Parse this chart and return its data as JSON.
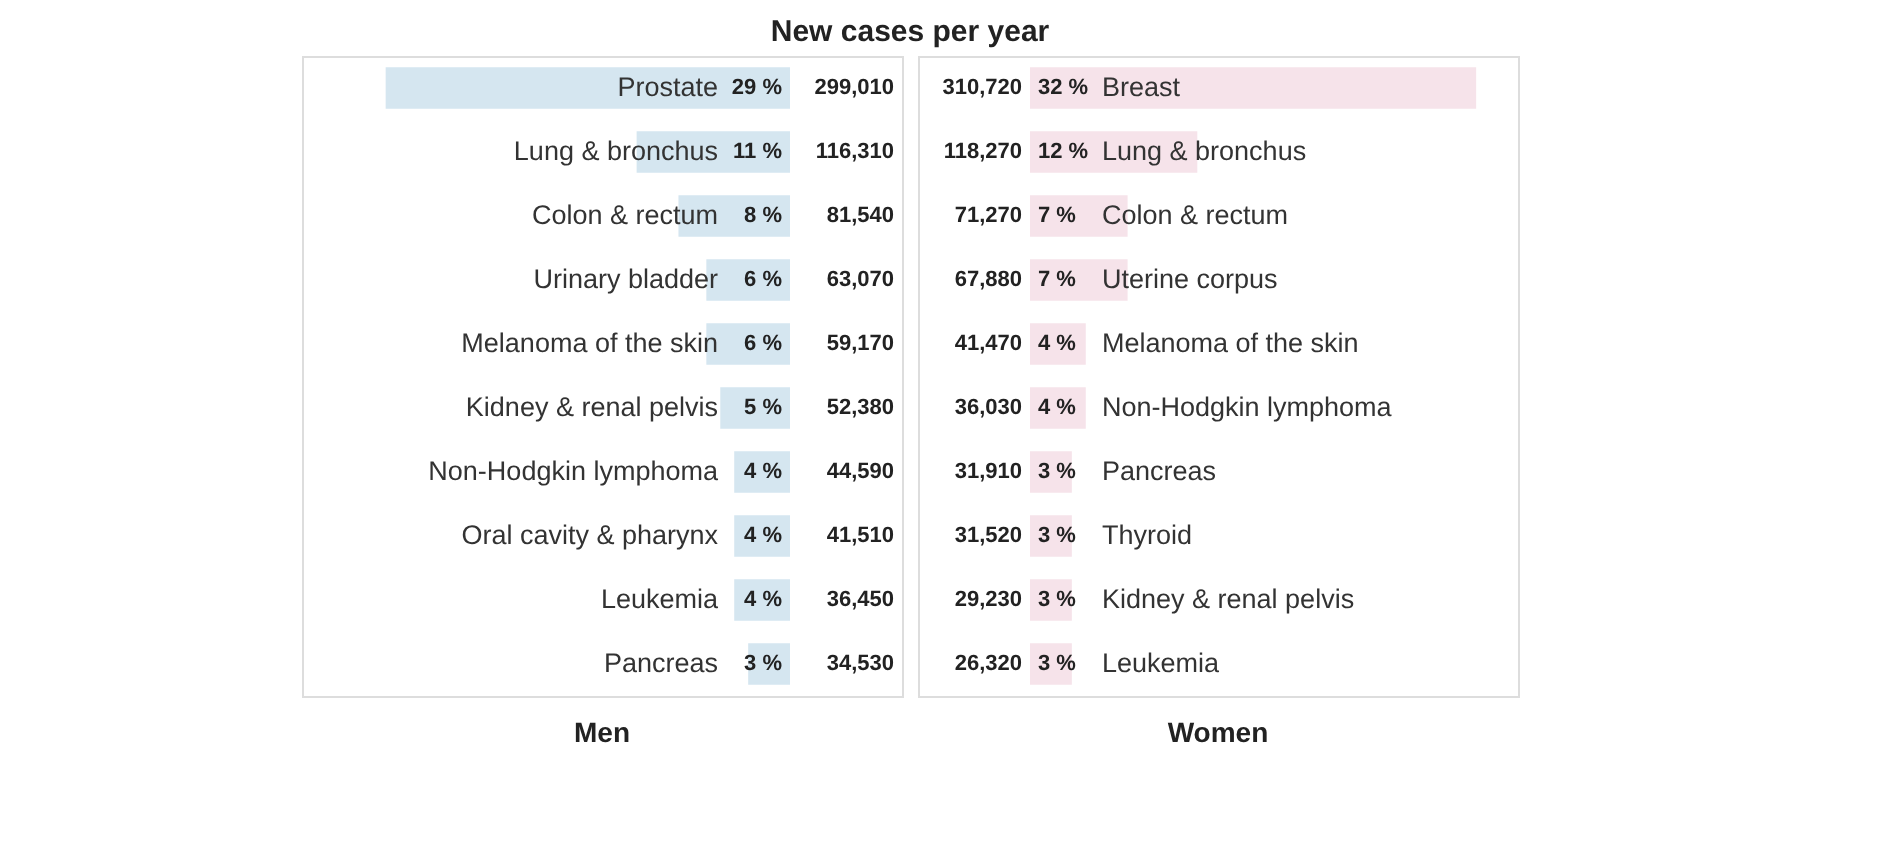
{
  "chart_data": [
    {
      "type": "bar",
      "orientation": "horizontal",
      "title": "New cases per year",
      "xlabel": "Men",
      "xlim": [
        35,
        0
      ],
      "tick_labels": false,
      "categories": [
        "Prostate",
        "Lung & bronchus",
        "Colon & rectum",
        "Urinary bladder",
        "Melanoma of the skin",
        "Kidney & renal pelvis",
        "Non-Hodgkin lymphoma",
        "Oral cavity & pharynx",
        "Leukemia",
        "Pancreas"
      ],
      "series": [
        {
          "color": "#d5e6f0",
          "values": [
            29,
            11,
            8,
            6,
            6,
            5,
            4,
            4,
            4,
            3
          ],
          "value_labels": [
            "29 %",
            "11 %",
            "8 %",
            "6 %",
            "6 %",
            "5 %",
            "4 %",
            "4 %",
            "4 %",
            "3 %"
          ]
        }
      ],
      "annotations": [
        "299,010",
        "116,310",
        "81,540",
        "63,070",
        "59,170",
        "52,380",
        "44,590",
        "41,510",
        "36,450",
        "34,530"
      ]
    },
    {
      "type": "bar",
      "orientation": "horizontal",
      "xlabel": "Women",
      "xlim": [
        0,
        35
      ],
      "tick_labels": false,
      "categories": [
        "Breast",
        "Lung & bronchus",
        "Colon & rectum",
        "Uterine corpus",
        "Melanoma of the skin",
        "Non-Hodgkin lymphoma",
        "Pancreas",
        "Thyroid",
        "Kidney & renal pelvis",
        "Leukemia"
      ],
      "series": [
        {
          "color": "#f6e3ea",
          "values": [
            32,
            12,
            7,
            7,
            4,
            4,
            3,
            3,
            3,
            3
          ],
          "value_labels": [
            "32 %",
            "12 %",
            "7 %",
            "7 %",
            "4 %",
            "4 %",
            "3 %",
            "3 %",
            "3 %",
            "3 %"
          ]
        }
      ],
      "annotations": [
        "310,720",
        "118,270",
        "71,270",
        "67,880",
        "41,470",
        "36,030",
        "31,910",
        "31,520",
        "29,230",
        "26,320"
      ]
    }
  ]
}
